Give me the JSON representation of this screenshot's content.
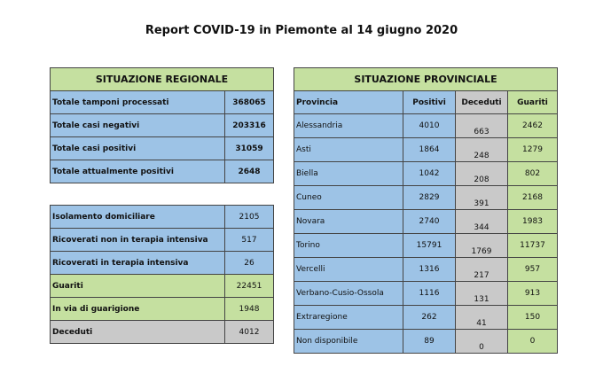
{
  "title": "Report COVID-19 in Piemonte al 14 giugno 2020",
  "regional": {
    "header": "SITUAZIONE REGIONALE",
    "totals": [
      {
        "label": "Totale tamponi processati",
        "value": "368065"
      },
      {
        "label": "Totale casi negativi",
        "value": "203316"
      },
      {
        "label": "Totale casi positivi",
        "value": "31059"
      },
      {
        "label": "Totale attualmente positivi",
        "value": "2648"
      }
    ],
    "details": [
      {
        "label": "Isolamento domiciliare",
        "value": "2105"
      },
      {
        "label": "Ricoverati non in terapia intensiva",
        "value": "517"
      },
      {
        "label": "Ricoverati in terapia intensiva",
        "value": "26"
      },
      {
        "label": "Guariti",
        "value": "22451"
      },
      {
        "label": "In via di guarigione",
        "value": "1948"
      },
      {
        "label": "Deceduti",
        "value": "4012"
      }
    ]
  },
  "provincial": {
    "header": "SITUAZIONE PROVINCIALE",
    "columns": [
      "Provincia",
      "Positivi",
      "Deceduti",
      "Guariti"
    ],
    "rows": [
      [
        "Alessandria",
        "4010",
        "663",
        "2462"
      ],
      [
        "Asti",
        "1864",
        "248",
        "1279"
      ],
      [
        "Biella",
        "1042",
        "208",
        "802"
      ],
      [
        "Cuneo",
        "2829",
        "391",
        "2168"
      ],
      [
        "Novara",
        "2740",
        "344",
        "1983"
      ],
      [
        "Torino",
        "15791",
        "1769",
        "11737"
      ],
      [
        "Vercelli",
        "1316",
        "217",
        "957"
      ],
      [
        "Verbano-Cusio-Ossola",
        "1116",
        "131",
        "913"
      ],
      [
        "Extraregione",
        "262",
        "41",
        "150"
      ],
      [
        "Non disponibile",
        "89",
        "0",
        "0"
      ]
    ]
  }
}
